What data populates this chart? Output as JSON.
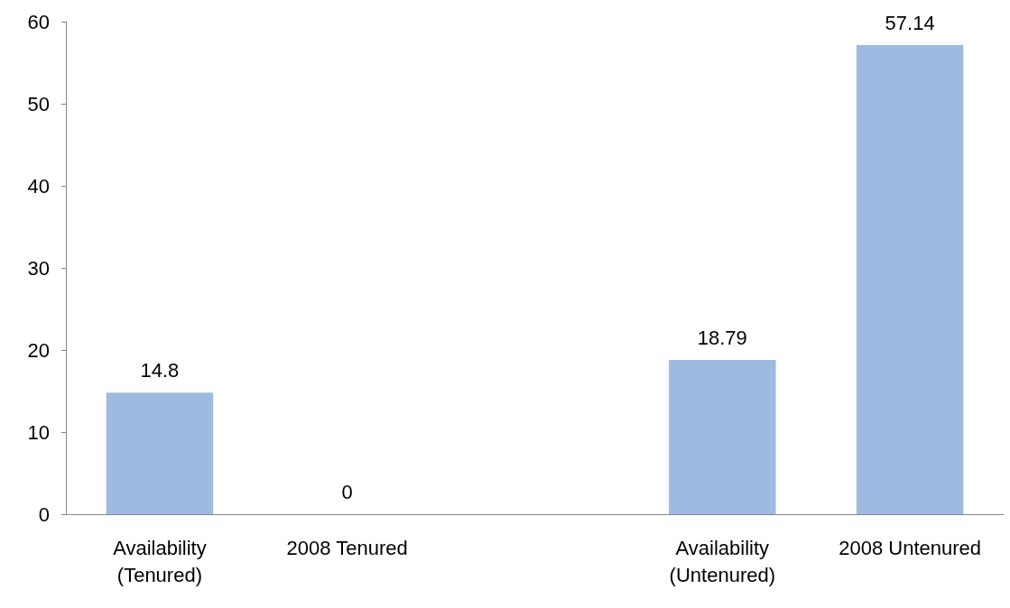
{
  "chart_data": {
    "type": "bar",
    "categories": [
      "Availability\n(Tenured)",
      "2008 Tenured",
      null,
      "Availability\n(Untenured)",
      "2008 Untenured"
    ],
    "values": [
      14.8,
      0,
      null,
      18.79,
      57.14
    ],
    "color": "#9dbbe0",
    "ylim": [
      0,
      60
    ],
    "yticks": [
      0,
      10,
      20,
      30,
      40,
      50,
      60
    ],
    "data_labels": true,
    "grid": false
  }
}
